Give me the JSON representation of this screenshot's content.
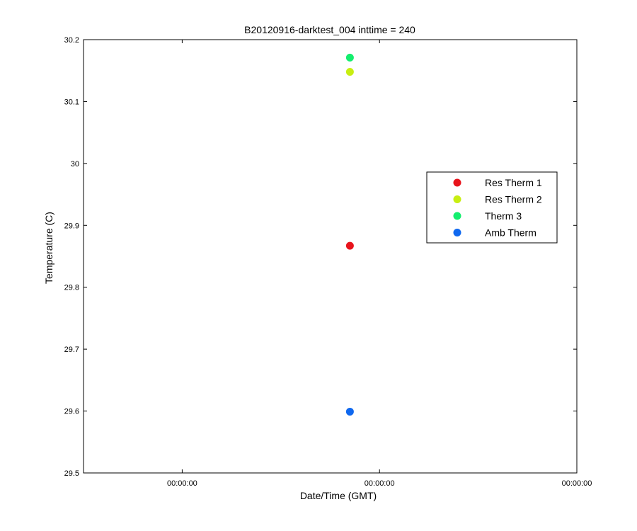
{
  "chart_data": {
    "type": "scatter",
    "title": "B20120916-darktest_004 inttime = 240",
    "xlabel": "Date/Time (GMT)",
    "ylabel": "Temperature (C)",
    "ylim": [
      29.5,
      30.2
    ],
    "yticks": [
      29.5,
      29.6,
      29.7,
      29.8,
      29.9,
      30,
      30.1,
      30.2
    ],
    "ytick_labels": [
      "29.5",
      "29.6",
      "29.7",
      "29.8",
      "29.9",
      "30",
      "30.1",
      "30.2"
    ],
    "xlim": [
      -1.0,
      1.5
    ],
    "xticks": [
      -0.5,
      0.5,
      1.5
    ],
    "xtick_labels": [
      "00:00:00",
      "00:00:00",
      "00:00:00"
    ],
    "grid": false,
    "legend_position": "right",
    "series": [
      {
        "name": "Res Therm 1",
        "color": "#e8141c",
        "x": [
          0.35
        ],
        "y": [
          29.867
        ]
      },
      {
        "name": "Res Therm 2",
        "color": "#c8ee12",
        "x": [
          0.35
        ],
        "y": [
          30.148
        ]
      },
      {
        "name": "Therm 3",
        "color": "#14ee6e",
        "x": [
          0.35
        ],
        "y": [
          30.171
        ]
      },
      {
        "name": "Amb Therm",
        "color": "#0f68ef",
        "x": [
          0.35
        ],
        "y": [
          29.599
        ]
      }
    ]
  }
}
